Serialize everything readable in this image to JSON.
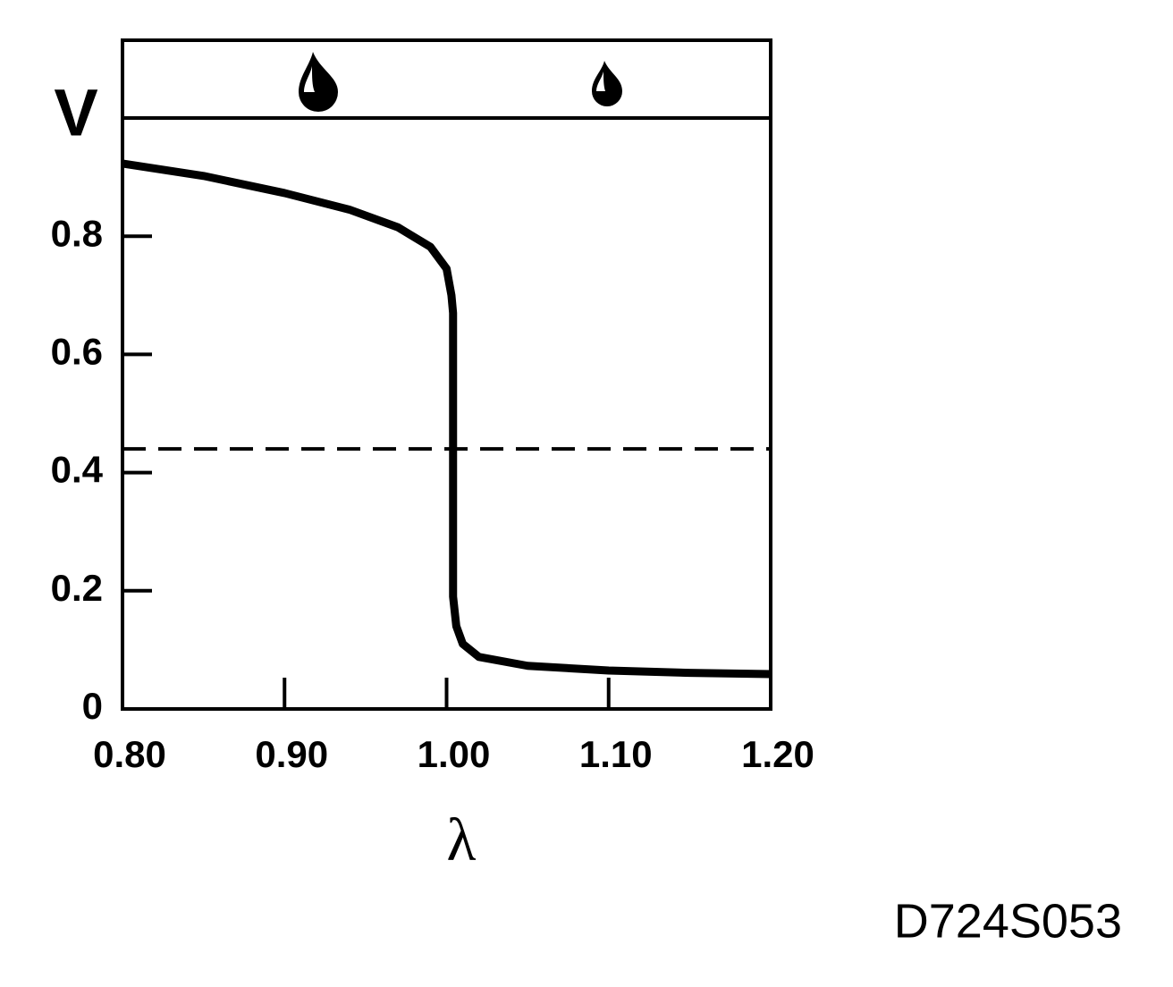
{
  "chart_data": {
    "type": "line",
    "y_label": "V",
    "x_label": "λ",
    "code": "D724S053",
    "x": [
      0.8,
      0.85,
      0.9,
      0.94,
      0.97,
      0.99,
      1.0,
      1.003,
      1.004,
      1.004,
      1.006,
      1.01,
      1.02,
      1.05,
      1.1,
      1.15,
      1.2
    ],
    "values": [
      0.923,
      0.902,
      0.873,
      0.845,
      0.815,
      0.782,
      0.745,
      0.7,
      0.67,
      0.19,
      0.14,
      0.11,
      0.088,
      0.073,
      0.065,
      0.061,
      0.059
    ],
    "color": "#000000",
    "reference_line": 0.44,
    "xlim": [
      0.8,
      1.2
    ],
    "ylim": [
      0,
      1.0
    ],
    "xticks": [
      {
        "value": 0.8,
        "label": "0.80"
      },
      {
        "value": 0.9,
        "label": "0.90"
      },
      {
        "value": 1.0,
        "label": "1.00"
      },
      {
        "value": 1.1,
        "label": "1.10"
      },
      {
        "value": 1.2,
        "label": "1.20"
      }
    ],
    "yticks": [
      0,
      0.2,
      0.4,
      0.6,
      0.8
    ]
  }
}
